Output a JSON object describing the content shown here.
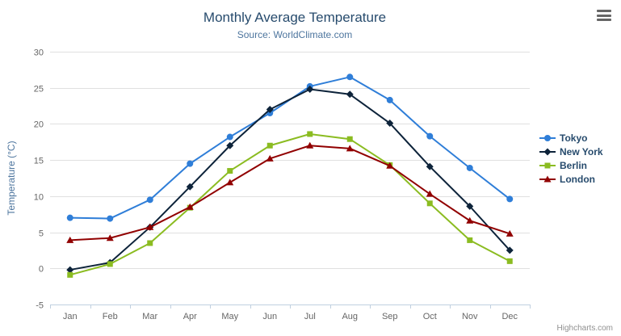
{
  "title": "Monthly Average Temperature",
  "subtitle": "Source: WorldClimate.com",
  "credits": "Highcharts.com",
  "export_menu_icon": "hamburger-menu-icon",
  "colors": {
    "title": "#274b6d",
    "subtitle": "#4d759e",
    "axis_labels": "#666666",
    "gridline": "#e0e0e0",
    "axis_line": "#c0d0e0",
    "legend_text": "#274b6d"
  },
  "chart_data": {
    "type": "line",
    "title": "Monthly Average Temperature",
    "subtitle": "Source: WorldClimate.com",
    "categories": [
      "Jan",
      "Feb",
      "Mar",
      "Apr",
      "May",
      "Jun",
      "Jul",
      "Aug",
      "Sep",
      "Oct",
      "Nov",
      "Dec"
    ],
    "series": [
      {
        "name": "Tokyo",
        "color": "#2f7ed8",
        "marker": "circle",
        "values": [
          7.0,
          6.9,
          9.5,
          14.5,
          18.2,
          21.5,
          25.2,
          26.5,
          23.3,
          18.3,
          13.9,
          9.6
        ]
      },
      {
        "name": "New York",
        "color": "#0d233a",
        "marker": "diamond",
        "values": [
          -0.2,
          0.8,
          5.7,
          11.3,
          17.0,
          22.0,
          24.8,
          24.1,
          20.1,
          14.1,
          8.6,
          2.5
        ]
      },
      {
        "name": "Berlin",
        "color": "#8bbc21",
        "marker": "square",
        "values": [
          -0.9,
          0.6,
          3.5,
          8.4,
          13.5,
          17.0,
          18.6,
          17.9,
          14.3,
          9.0,
          3.9,
          1.0
        ]
      },
      {
        "name": "London",
        "color": "#910000",
        "marker": "triangle",
        "values": [
          3.9,
          4.2,
          5.7,
          8.5,
          11.9,
          15.2,
          17.0,
          16.6,
          14.2,
          10.3,
          6.6,
          4.8
        ]
      }
    ],
    "xlabel": "",
    "ylabel": "Temperature (°C)",
    "ylim": [
      -5,
      30
    ],
    "y_ticks": [
      -5,
      0,
      5,
      10,
      15,
      20,
      25,
      30
    ],
    "grid": true,
    "legend_position": "right"
  }
}
